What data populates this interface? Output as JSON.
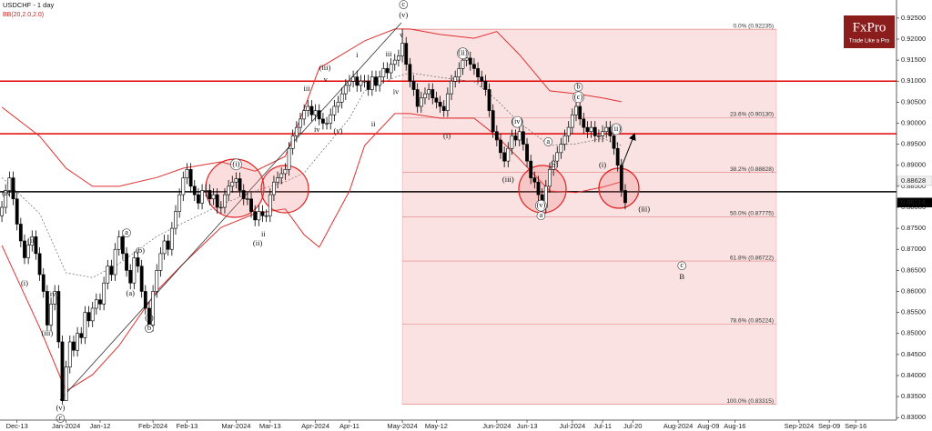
{
  "logo": {
    "brand": "FxPro",
    "tagline": "Trade Like a Pro"
  },
  "chart_data": {
    "type": "candlestick",
    "title": "USDCHF - 1 day",
    "subtitle": "BB(20,2.0,2.0)",
    "xlim": [
      -0.5,
      236.8
    ],
    "ylim": [
      0.8294,
      0.9293
    ],
    "yticks": [
      {
        "value": 0.925,
        "label": "0.92500"
      },
      {
        "value": 0.92,
        "label": "0.92000"
      },
      {
        "value": 0.915,
        "label": "0.91500"
      },
      {
        "value": 0.91,
        "label": "0.91000"
      },
      {
        "value": 0.905,
        "label": "0.90500"
      },
      {
        "value": 0.9,
        "label": "0.90000"
      },
      {
        "value": 0.895,
        "label": "0.89500"
      },
      {
        "value": 0.89,
        "label": "0.89000"
      },
      {
        "value": 0.885,
        "label": "0.88500"
      },
      {
        "value": 0.88,
        "label": "0.88000"
      },
      {
        "value": 0.875,
        "label": "0.87500"
      },
      {
        "value": 0.87,
        "label": "0.87000"
      },
      {
        "value": 0.865,
        "label": "0.86500"
      },
      {
        "value": 0.86,
        "label": "0.86000"
      },
      {
        "value": 0.855,
        "label": "0.85500"
      },
      {
        "value": 0.85,
        "label": "0.85000"
      },
      {
        "value": 0.845,
        "label": "0.84500"
      },
      {
        "value": 0.84,
        "label": "0.84000"
      },
      {
        "value": 0.835,
        "label": "0.83500"
      },
      {
        "value": 0.83,
        "label": "0.83000"
      }
    ],
    "xticks": [
      {
        "value": 4,
        "label": "Dec-13"
      },
      {
        "value": 17,
        "label": "Jan-2024"
      },
      {
        "value": 26,
        "label": "Jan-12"
      },
      {
        "value": 40,
        "label": "Feb-2024"
      },
      {
        "value": 49,
        "label": "Feb-13"
      },
      {
        "value": 62,
        "label": "Mar-2024"
      },
      {
        "value": 71,
        "label": "Mar-13"
      },
      {
        "value": 83,
        "label": "Apr-2024"
      },
      {
        "value": 92,
        "label": "Apr-11"
      },
      {
        "value": 106,
        "label": "May-2024"
      },
      {
        "value": 115,
        "label": "May-12"
      },
      {
        "value": 131,
        "label": "Jun-2024"
      },
      {
        "value": 139,
        "label": "Jun-13"
      },
      {
        "value": 151,
        "label": "Jul-2024"
      },
      {
        "value": 159,
        "label": "Jul-11"
      },
      {
        "value": 167,
        "label": "Jul-20"
      },
      {
        "value": 179,
        "label": "Aug-2024"
      },
      {
        "value": 187,
        "label": "Aug-09"
      },
      {
        "value": 194,
        "label": "Aug-16"
      },
      {
        "value": 211,
        "label": "Sep-2024"
      },
      {
        "value": 219,
        "label": "Sep-09"
      },
      {
        "value": 226,
        "label": "Sep-16"
      }
    ],
    "open": [
      0.878,
      0.88,
      0.884,
      0.887,
      0.882,
      0.876,
      0.872,
      0.868,
      0.871,
      0.873,
      0.869,
      0.864,
      0.86,
      0.852,
      0.857,
      0.86,
      0.848,
      0.834,
      0.842,
      0.848,
      0.846,
      0.85,
      0.849,
      0.855,
      0.853,
      0.856,
      0.858,
      0.857,
      0.862,
      0.866,
      0.864,
      0.87,
      0.873,
      0.869,
      0.865,
      0.862,
      0.868,
      0.866,
      0.86,
      0.856,
      0.852,
      0.86,
      0.865,
      0.869,
      0.872,
      0.87,
      0.875,
      0.879,
      0.883,
      0.887,
      0.889,
      0.885,
      0.883,
      0.881,
      0.884,
      0.884,
      0.882,
      0.883,
      0.88,
      0.88,
      0.883,
      0.885,
      0.886,
      0.8868,
      0.884,
      0.882,
      0.882,
      0.879,
      0.877,
      0.879,
      0.878,
      0.878,
      0.883,
      0.886,
      0.887,
      0.888,
      0.889,
      0.894,
      0.897,
      0.899,
      0.901,
      0.903,
      0.904,
      0.902,
      0.903,
      0.901,
      0.9,
      0.9,
      0.902,
      0.904,
      0.905,
      0.907,
      0.909,
      0.91,
      0.911,
      0.909,
      0.91,
      0.91,
      0.908,
      0.911,
      0.909,
      0.911,
      0.913,
      0.912,
      0.914,
      0.915,
      0.916,
      0.919,
      0.914,
      0.91,
      0.908,
      0.904,
      0.906,
      0.907,
      0.908,
      0.906,
      0.905,
      0.904,
      0.903,
      0.907,
      0.91,
      0.911,
      0.913,
      0.915,
      0.9155,
      0.914,
      0.913,
      0.911,
      0.91,
      0.908,
      0.903,
      0.898,
      0.896,
      0.893,
      0.891,
      0.894,
      0.897,
      0.896,
      0.898,
      0.895,
      0.891,
      0.887,
      0.886,
      0.883,
      0.88,
      0.885,
      0.889,
      0.891,
      0.893,
      0.895,
      0.897,
      0.899,
      0.902,
      0.904,
      0.901,
      0.899,
      0.898,
      0.899,
      0.897,
      0.897,
      0.898,
      0.899,
      0.897,
      0.894,
      0.89,
      0.884
    ],
    "high": [
      0.8815,
      0.8855,
      0.8885,
      0.8885,
      0.8835,
      0.8775,
      0.8735,
      0.8725,
      0.8745,
      0.8745,
      0.8705,
      0.8655,
      0.8615,
      0.8585,
      0.8615,
      0.8615,
      0.8495,
      0.8435,
      0.8495,
      0.8495,
      0.8515,
      0.8515,
      0.8565,
      0.8565,
      0.8575,
      0.8595,
      0.8595,
      0.8635,
      0.8675,
      0.8675,
      0.8715,
      0.8745,
      0.8745,
      0.8705,
      0.8665,
      0.8695,
      0.8695,
      0.8675,
      0.8615,
      0.8575,
      0.8615,
      0.8665,
      0.8705,
      0.8735,
      0.8735,
      0.8765,
      0.8805,
      0.8845,
      0.8885,
      0.8905,
      0.8905,
      0.8865,
      0.8845,
      0.8855,
      0.8855,
      0.8855,
      0.8845,
      0.8845,
      0.8815,
      0.8845,
      0.8865,
      0.8875,
      0.8883,
      0.8883,
      0.8855,
      0.8835,
      0.8835,
      0.8805,
      0.8805,
      0.8805,
      0.8795,
      0.8845,
      0.8875,
      0.8885,
      0.8895,
      0.8905,
      0.8955,
      0.8985,
      0.9005,
      0.9025,
      0.9045,
      0.9055,
      0.9055,
      0.9045,
      0.9045,
      0.9025,
      0.9015,
      0.9035,
      0.9055,
      0.9065,
      0.9085,
      0.9105,
      0.9115,
      0.9125,
      0.9125,
      0.9115,
      0.9115,
      0.9115,
      0.9125,
      0.9125,
      0.9125,
      0.9145,
      0.9145,
      0.9155,
      0.9165,
      0.9175,
      0.9224,
      0.9205,
      0.9155,
      0.9115,
      0.9095,
      0.9075,
      0.9085,
      0.9095,
      0.9095,
      0.9075,
      0.9065,
      0.9055,
      0.9085,
      0.9115,
      0.9125,
      0.9145,
      0.9165,
      0.917,
      0.917,
      0.9155,
      0.9145,
      0.9125,
      0.9115,
      0.9095,
      0.9045,
      0.8995,
      0.8975,
      0.8945,
      0.8955,
      0.8985,
      0.8985,
      0.8995,
      0.8995,
      0.8965,
      0.8925,
      0.8885,
      0.8875,
      0.8845,
      0.8865,
      0.8905,
      0.8925,
      0.8945,
      0.8965,
      0.8985,
      0.9005,
      0.9035,
      0.9055,
      0.9055,
      0.9025,
      0.9005,
      0.9005,
      0.9005,
      0.8985,
      0.8995,
      0.9005,
      0.9005,
      0.8985,
      0.8955,
      0.8915,
      0.8855
    ],
    "low": [
      0.8765,
      0.8785,
      0.8825,
      0.8805,
      0.8745,
      0.8705,
      0.8665,
      0.8665,
      0.8695,
      0.8675,
      0.8625,
      0.8585,
      0.8505,
      0.8505,
      0.8555,
      0.8465,
      0.8331,
      0.834,
      0.8405,
      0.8445,
      0.8445,
      0.8475,
      0.8475,
      0.8515,
      0.8515,
      0.8545,
      0.8555,
      0.8555,
      0.8605,
      0.8625,
      0.8625,
      0.8685,
      0.8675,
      0.8635,
      0.8605,
      0.8605,
      0.8645,
      0.8585,
      0.8545,
      0.8505,
      0.8505,
      0.8585,
      0.8635,
      0.8675,
      0.8685,
      0.8685,
      0.8735,
      0.8775,
      0.8815,
      0.8855,
      0.8835,
      0.8815,
      0.8795,
      0.8795,
      0.8825,
      0.8805,
      0.8805,
      0.8785,
      0.8785,
      0.8785,
      0.8815,
      0.8835,
      0.8845,
      0.8825,
      0.8805,
      0.8805,
      0.8775,
      0.8755,
      0.8755,
      0.8765,
      0.8765,
      0.8765,
      0.8815,
      0.8845,
      0.8855,
      0.8865,
      0.8875,
      0.8925,
      0.8955,
      0.8975,
      0.8995,
      0.9015,
      0.9005,
      0.9005,
      0.8995,
      0.8985,
      0.8985,
      0.8985,
      0.9005,
      0.9025,
      0.9035,
      0.9055,
      0.9075,
      0.9085,
      0.9075,
      0.9075,
      0.9085,
      0.9065,
      0.9065,
      0.9075,
      0.9075,
      0.9095,
      0.9105,
      0.9105,
      0.9125,
      0.9135,
      0.9145,
      0.9125,
      0.9085,
      0.9065,
      0.9025,
      0.9025,
      0.9045,
      0.9055,
      0.9045,
      0.9035,
      0.9025,
      0.9015,
      0.9015,
      0.9055,
      0.9085,
      0.9095,
      0.9115,
      0.9135,
      0.9125,
      0.9115,
      0.9095,
      0.9085,
      0.9065,
      0.9015,
      0.8965,
      0.8945,
      0.8915,
      0.8895,
      0.8895,
      0.8925,
      0.8945,
      0.8945,
      0.8935,
      0.8895,
      0.8855,
      0.8845,
      0.8815,
      0.878,
      0.8785,
      0.8835,
      0.8875,
      0.8895,
      0.8915,
      0.8935,
      0.8955,
      0.8975,
      0.9005,
      0.8995,
      0.8975,
      0.8965,
      0.8965,
      0.8955,
      0.8955,
      0.8955,
      0.8965,
      0.8955,
      0.8925,
      0.8885,
      0.8825,
      0.8795
    ],
    "close": [
      0.88,
      0.884,
      0.887,
      0.882,
      0.876,
      0.872,
      0.868,
      0.871,
      0.873,
      0.869,
      0.864,
      0.86,
      0.852,
      0.857,
      0.86,
      0.848,
      0.834,
      0.842,
      0.848,
      0.846,
      0.85,
      0.849,
      0.855,
      0.853,
      0.856,
      0.858,
      0.857,
      0.862,
      0.866,
      0.864,
      0.87,
      0.873,
      0.869,
      0.865,
      0.862,
      0.868,
      0.866,
      0.86,
      0.856,
      0.852,
      0.86,
      0.865,
      0.869,
      0.872,
      0.87,
      0.875,
      0.879,
      0.883,
      0.887,
      0.889,
      0.885,
      0.883,
      0.881,
      0.884,
      0.884,
      0.882,
      0.883,
      0.88,
      0.88,
      0.883,
      0.885,
      0.886,
      0.8868,
      0.884,
      0.882,
      0.882,
      0.879,
      0.877,
      0.879,
      0.878,
      0.878,
      0.883,
      0.886,
      0.887,
      0.888,
      0.889,
      0.894,
      0.897,
      0.899,
      0.901,
      0.903,
      0.904,
      0.902,
      0.903,
      0.901,
      0.9,
      0.9,
      0.902,
      0.904,
      0.905,
      0.907,
      0.909,
      0.91,
      0.911,
      0.909,
      0.91,
      0.91,
      0.908,
      0.911,
      0.909,
      0.911,
      0.913,
      0.912,
      0.914,
      0.915,
      0.916,
      0.919,
      0.914,
      0.91,
      0.908,
      0.904,
      0.906,
      0.907,
      0.908,
      0.906,
      0.905,
      0.904,
      0.903,
      0.907,
      0.91,
      0.911,
      0.913,
      0.915,
      0.9155,
      0.914,
      0.913,
      0.911,
      0.91,
      0.908,
      0.903,
      0.898,
      0.896,
      0.893,
      0.891,
      0.894,
      0.897,
      0.896,
      0.898,
      0.895,
      0.891,
      0.887,
      0.886,
      0.883,
      0.88,
      0.885,
      0.889,
      0.891,
      0.893,
      0.895,
      0.897,
      0.899,
      0.902,
      0.904,
      0.901,
      0.899,
      0.898,
      0.899,
      0.897,
      0.897,
      0.898,
      0.899,
      0.897,
      0.894,
      0.89,
      0.884,
      0.8811
    ],
    "up_color": "#ffffff",
    "down_color": "#000000",
    "bands": {
      "color": "#e03030",
      "x": [
        0,
        10,
        17,
        24,
        31,
        41,
        48,
        58,
        67,
        75,
        80,
        84,
        92,
        96,
        104,
        108,
        116,
        125,
        131,
        137,
        145,
        152,
        159,
        164
      ],
      "upper": [
        0.9038,
        0.8969,
        0.8893,
        0.885,
        0.885,
        0.8871,
        0.8893,
        0.8908,
        0.8886,
        0.8921,
        0.9034,
        0.9131,
        0.9174,
        0.9196,
        0.9224,
        0.9224,
        0.9211,
        0.9202,
        0.9218,
        0.9163,
        0.9077,
        0.907,
        0.906,
        0.9051
      ],
      "middle": [
        0.8871,
        0.8785,
        0.8644,
        0.8633,
        0.8666,
        0.8731,
        0.8763,
        0.8806,
        0.8839,
        0.8861,
        0.8882,
        0.8925,
        0.9012,
        0.9077,
        0.9109,
        0.912,
        0.9109,
        0.9099,
        0.9055,
        0.9001,
        0.8947,
        0.8951,
        0.8964,
        0.8947
      ],
      "lower": [
        0.8709,
        0.8514,
        0.8363,
        0.8402,
        0.8471,
        0.8601,
        0.8666,
        0.8752,
        0.8785,
        0.8796,
        0.8735,
        0.8705,
        0.8839,
        0.8947,
        0.9023,
        0.9023,
        0.9012,
        0.9012,
        0.8969,
        0.8915,
        0.8839,
        0.8835,
        0.8848,
        0.8861
      ]
    },
    "hlines": [
      {
        "value": 0.91,
        "color": "#e00000"
      },
      {
        "value": 0.8975,
        "color": "#e00000"
      },
      {
        "value": 0.8837,
        "color": "#000000"
      }
    ],
    "fib": {
      "x": [
        106,
        205
      ],
      "levels": [
        {
          "value": 0.92235,
          "label": "0.0% (0.92235)"
        },
        {
          "value": 0.9013,
          "label": "23.6% (0.90130)"
        },
        {
          "value": 0.88828,
          "label": "38.2% (0.88828)"
        },
        {
          "value": 0.87775,
          "label": "50.0% (0.87775)"
        },
        {
          "value": 0.86722,
          "label": "61.8% (0.86722)"
        },
        {
          "value": 0.85224,
          "label": "78.6% (0.85224)"
        },
        {
          "value": 0.83315,
          "label": "100.0% (0.83315)"
        }
      ]
    },
    "price_markers": [
      0.88628,
      0.88114
    ],
    "annotations": [
      {
        "text": "(iv)",
        "x": 1.5,
        "y": 0.8832
      },
      {
        "text": "(ii)",
        "x": 8,
        "y": 0.872
      },
      {
        "text": "(i)",
        "x": 6,
        "y": 0.8618
      },
      {
        "text": "(iv)",
        "x": 13.5,
        "y": 0.8592
      },
      {
        "text": "(iii)",
        "x": 12,
        "y": 0.8499
      },
      {
        "text": "(v)",
        "x": 15.5,
        "y": 0.8322
      },
      {
        "text": "c",
        "x": 15.5,
        "y": 0.8298,
        "circled": true
      },
      {
        "text": "a",
        "x": 33,
        "y": 0.8739,
        "circled": true
      },
      {
        "text": "(b)",
        "x": 36.6,
        "y": 0.8696
      },
      {
        "text": "(a)",
        "x": 34,
        "y": 0.8594
      },
      {
        "text": "(c)",
        "x": 39,
        "y": 0.8536
      },
      {
        "text": "b",
        "x": 39,
        "y": 0.8512,
        "circled": true
      },
      {
        "text": "(i)",
        "x": 62,
        "y": 0.8902,
        "circled": true
      },
      {
        "text": "(ii)",
        "x": 67.7,
        "y": 0.8713
      },
      {
        "text": "ii",
        "x": 69.2,
        "y": 0.8735
      },
      {
        "text": "i",
        "x": 74,
        "y": 0.886
      },
      {
        "text": "iii",
        "x": 80.7,
        "y": 0.9081
      },
      {
        "text": "iv",
        "x": 83.4,
        "y": 0.8984
      },
      {
        "text": "(iii)",
        "x": 85.5,
        "y": 0.9131
      },
      {
        "text": "v",
        "x": 85.7,
        "y": 0.9103
      },
      {
        "text": "(v)",
        "x": 89,
        "y": 0.898
      },
      {
        "text": "i",
        "x": 94,
        "y": 0.9161
      },
      {
        "text": "ii",
        "x": 98.3,
        "y": 0.8997
      },
      {
        "text": "iii",
        "x": 102.4,
        "y": 0.9163
      },
      {
        "text": "iv",
        "x": 104.3,
        "y": 0.9073
      },
      {
        "text": "v",
        "x": 105.8,
        "y": 0.9209
      },
      {
        "text": "(v)",
        "x": 106.3,
        "y": 0.9256
      },
      {
        "text": "c",
        "x": 106.3,
        "y": 0.9282,
        "circled": true
      },
      {
        "text": "(ii)",
        "x": 122,
        "y": 0.9166,
        "circled": true
      },
      {
        "text": "(i)",
        "x": 117.8,
        "y": 0.8969
      },
      {
        "text": "(iv)",
        "x": 136.4,
        "y": 0.9003,
        "circled": true
      },
      {
        "text": "(iii)",
        "x": 134,
        "y": 0.8865
      },
      {
        "text": "a",
        "x": 144.6,
        "y": 0.8956,
        "circled": true
      },
      {
        "text": "(b)",
        "x": 146,
        "y": 0.8899
      },
      {
        "text": "(v)",
        "x": 142.7,
        "y": 0.8804,
        "circled": true
      },
      {
        "text": "a",
        "x": 142.7,
        "y": 0.878,
        "circled": true
      },
      {
        "text": "b",
        "x": 152.6,
        "y": 0.9086,
        "circled": true
      },
      {
        "text": "(c)",
        "x": 152.6,
        "y": 0.9062,
        "circled": true
      },
      {
        "text": "(ii)",
        "x": 162.6,
        "y": 0.8986,
        "circled": true
      },
      {
        "text": "(i)",
        "x": 159,
        "y": 0.8899
      },
      {
        "text": "(iii)",
        "x": 170,
        "y": 0.8795
      },
      {
        "text": "c",
        "x": 180,
        "y": 0.8661,
        "circled": true
      },
      {
        "text": "B",
        "x": 180,
        "y": 0.8633
      }
    ]
  }
}
